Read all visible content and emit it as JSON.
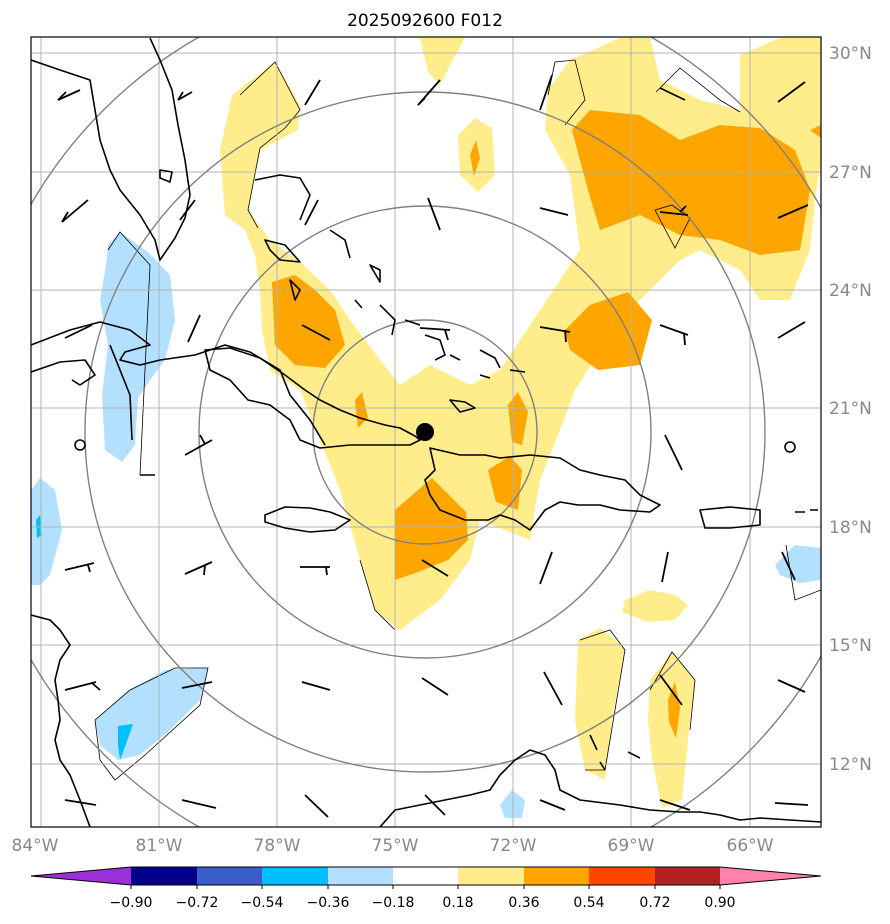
{
  "title": "2025092600 F012",
  "lon_labels": [
    "84°W",
    "81°W",
    "78°W",
    "75°W",
    "72°W",
    "69°W",
    "66°W"
  ],
  "lat_labels": [
    "30°N",
    "27°N",
    "24°N",
    "21°N",
    "18°N",
    "15°N",
    "12°N"
  ],
  "colorbar": {
    "ticks": [
      "−0.90",
      "−0.72",
      "−0.54",
      "−0.36",
      "−0.18",
      "0.18",
      "0.36",
      "0.54",
      "0.72",
      "0.90"
    ],
    "colors": [
      "#9b30d9",
      "#00008b",
      "#3a5fcd",
      "#00bfff",
      "#b3e0ff",
      "#ffffff",
      "#ffec8b",
      "#ffa500",
      "#ff4500",
      "#b22222",
      "#ff82ab"
    ]
  },
  "storm_center": {
    "lon": -74.2,
    "lat": 20.3
  },
  "colors": {
    "light_yellow": "#ffec8b",
    "orange": "#ffa500",
    "light_blue": "#b3e0ff",
    "cyan": "#00bfff"
  }
}
